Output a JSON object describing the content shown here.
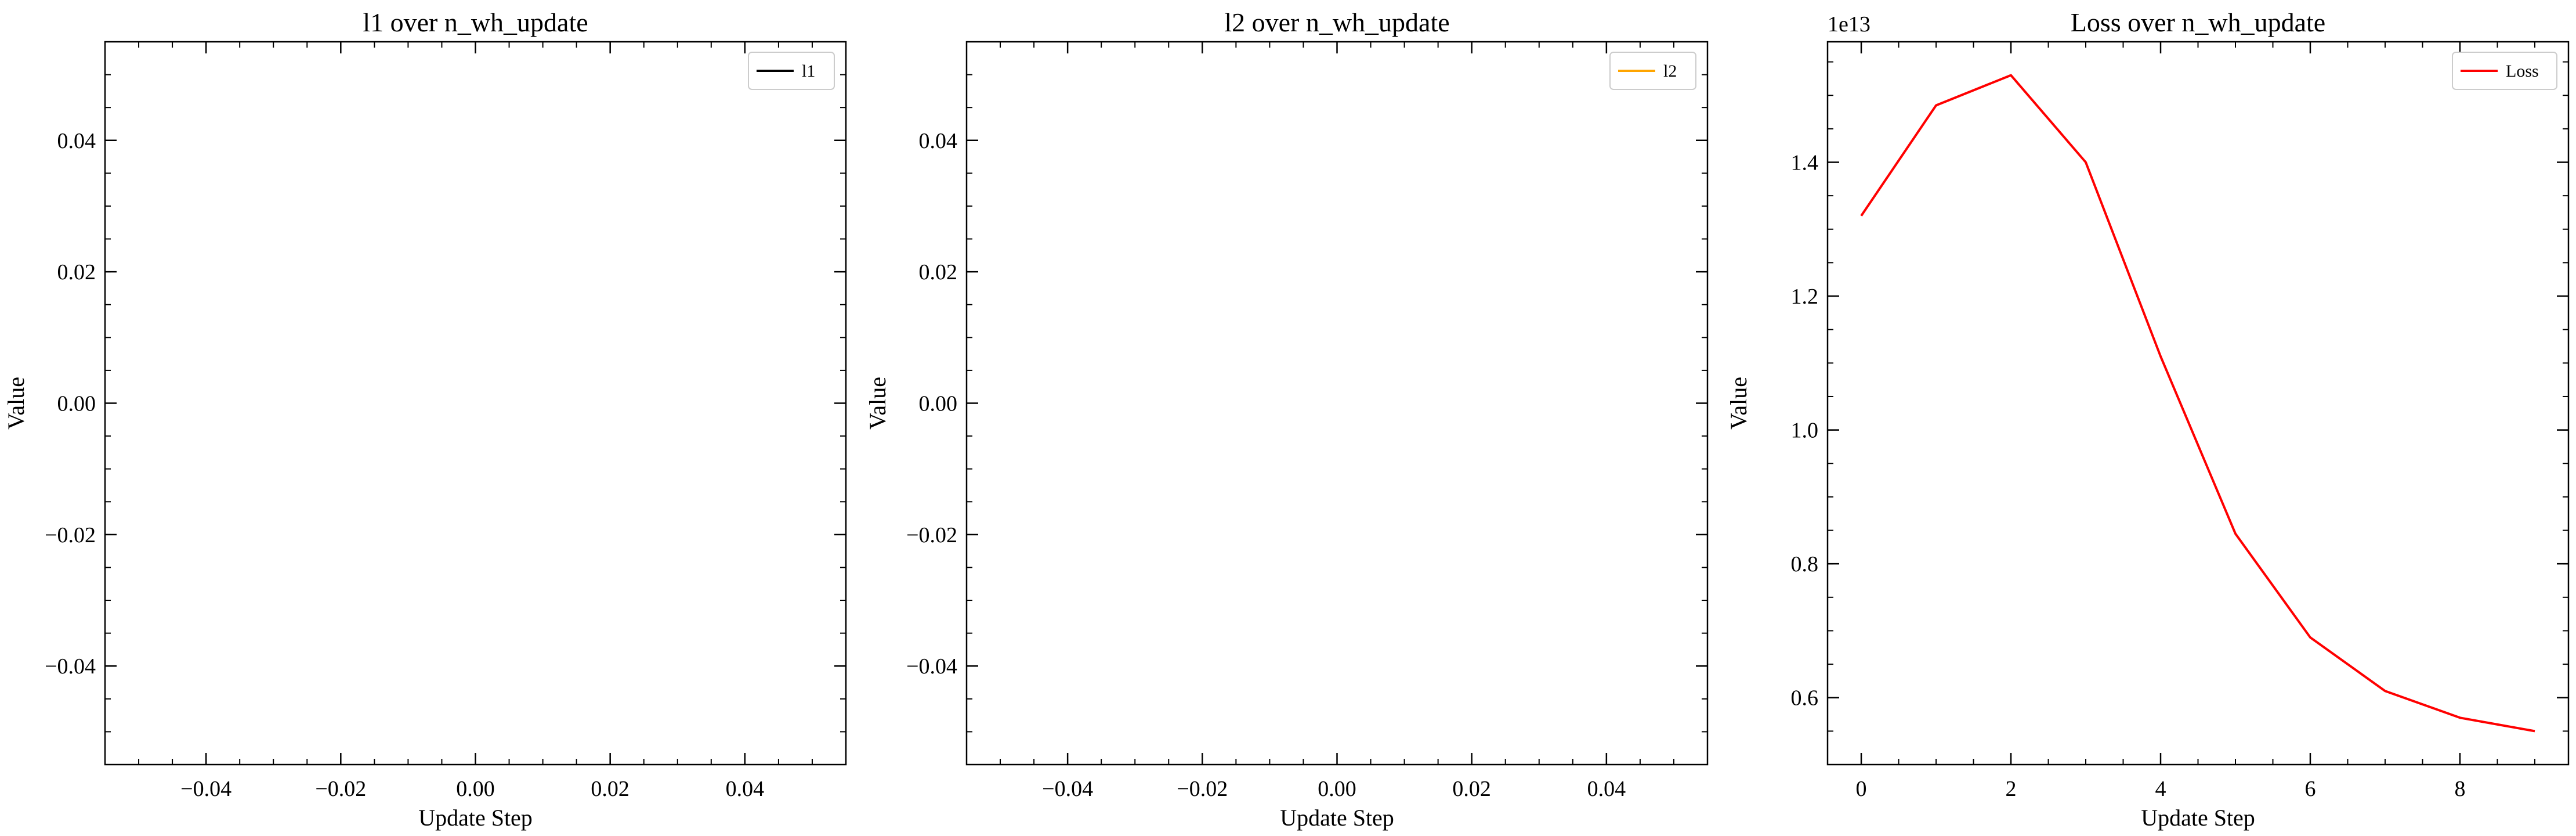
{
  "chart_data": [
    {
      "type": "line",
      "title": "l1 over n_wh_update",
      "xlabel": "Update Step",
      "ylabel": "Value",
      "xlim": [
        -0.055,
        0.055
      ],
      "ylim": [
        -0.055,
        0.055
      ],
      "x_ticks": [
        -0.04,
        -0.02,
        0.0,
        0.02,
        0.04
      ],
      "x_tick_labels": [
        "−0.04",
        "−0.02",
        "0.00",
        "0.02",
        "0.04"
      ],
      "y_ticks": [
        -0.04,
        -0.02,
        0.0,
        0.02,
        0.04
      ],
      "y_tick_labels": [
        "−0.04",
        "−0.02",
        "0.00",
        "0.02",
        "0.04"
      ],
      "offset_label": "",
      "grid": false,
      "legend_position": "top-right",
      "series": [
        {
          "name": "l1",
          "color": "#000000",
          "x": [],
          "y": []
        }
      ]
    },
    {
      "type": "line",
      "title": "l2 over n_wh_update",
      "xlabel": "Update Step",
      "ylabel": "Value",
      "xlim": [
        -0.055,
        0.055
      ],
      "ylim": [
        -0.055,
        0.055
      ],
      "x_ticks": [
        -0.04,
        -0.02,
        0.0,
        0.02,
        0.04
      ],
      "x_tick_labels": [
        "−0.04",
        "−0.02",
        "0.00",
        "0.02",
        "0.04"
      ],
      "y_ticks": [
        -0.04,
        -0.02,
        0.0,
        0.02,
        0.04
      ],
      "y_tick_labels": [
        "−0.04",
        "−0.02",
        "0.00",
        "0.02",
        "0.04"
      ],
      "offset_label": "",
      "grid": false,
      "legend_position": "top-right",
      "series": [
        {
          "name": "l2",
          "color": "#ffa500",
          "x": [],
          "y": []
        }
      ]
    },
    {
      "type": "line",
      "title": "Loss over n_wh_update",
      "xlabel": "Update Step",
      "ylabel": "Value",
      "xlim": [
        -0.45,
        9.45
      ],
      "ylim": [
        0.5,
        1.58
      ],
      "x_ticks": [
        0,
        2,
        4,
        6,
        8
      ],
      "x_tick_labels": [
        "0",
        "2",
        "4",
        "6",
        "8"
      ],
      "y_ticks": [
        0.6,
        0.8,
        1.0,
        1.2,
        1.4
      ],
      "y_tick_labels": [
        "0.6",
        "0.8",
        "1.0",
        "1.2",
        "1.4"
      ],
      "offset_label": "1e13",
      "grid": false,
      "legend_position": "top-right",
      "series": [
        {
          "name": "Loss",
          "color": "#ff0000",
          "x": [
            0,
            1,
            2,
            3,
            4,
            5,
            6,
            7,
            8,
            9
          ],
          "y": [
            1.32,
            1.485,
            1.53,
            1.4,
            1.11,
            0.845,
            0.69,
            0.61,
            0.57,
            0.55
          ]
        }
      ]
    }
  ]
}
